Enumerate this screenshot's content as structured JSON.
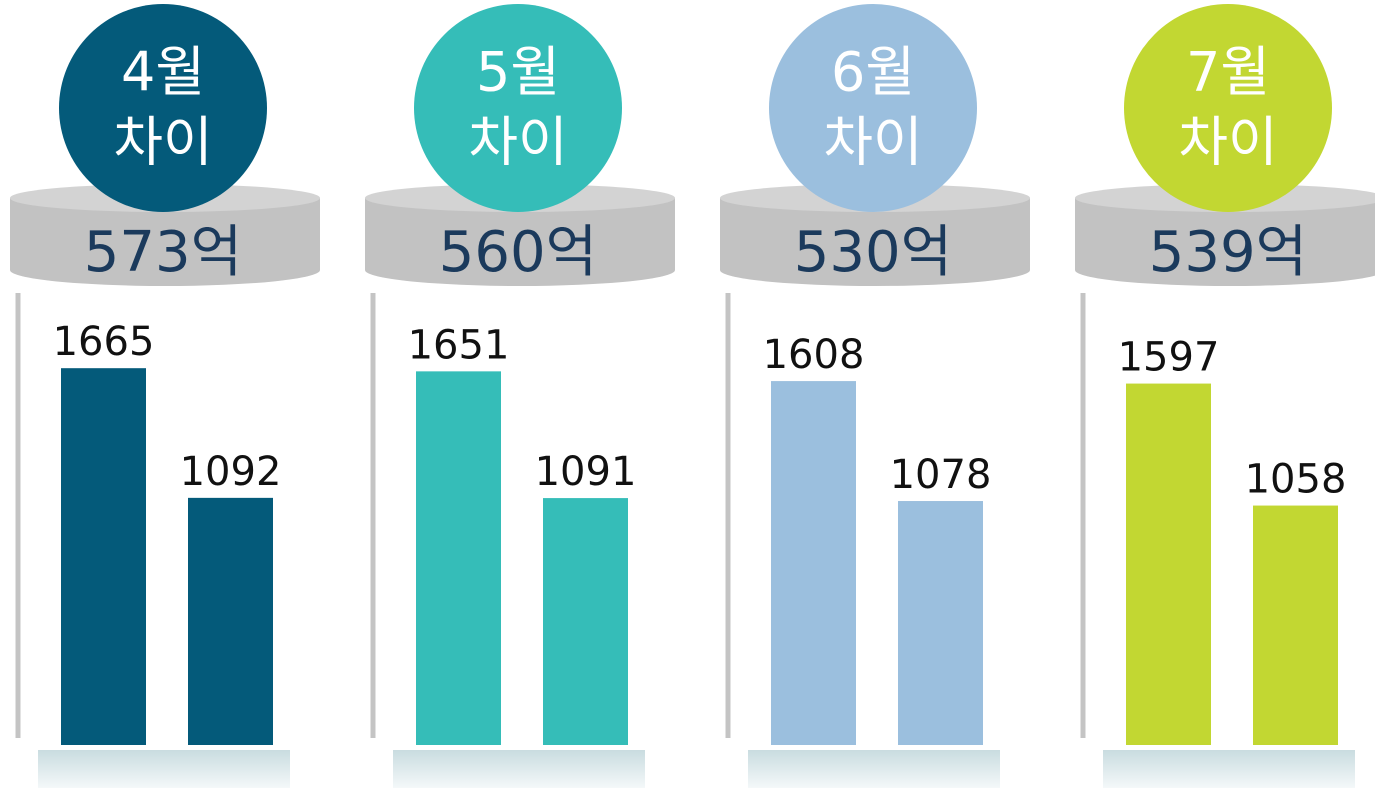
{
  "chart_data": [
    {
      "type": "bar",
      "title": "4월",
      "subtitle": "차이",
      "annotation": "573억",
      "categories": [
        null,
        null
      ],
      "values": [
        1665,
        1092
      ],
      "color": "#045a7a",
      "ylim": [
        0,
        1900
      ]
    },
    {
      "type": "bar",
      "title": "5월",
      "subtitle": "차이",
      "annotation": "560억",
      "categories": [
        null,
        null
      ],
      "values": [
        1651,
        1091
      ],
      "color": "#35bdb8",
      "ylim": [
        0,
        1900
      ]
    },
    {
      "type": "bar",
      "title": "6월",
      "subtitle": "차이",
      "annotation": "530억",
      "categories": [
        null,
        null
      ],
      "values": [
        1608,
        1078
      ],
      "color": "#9bbfde",
      "ylim": [
        0,
        1900
      ]
    },
    {
      "type": "bar",
      "title": "7월",
      "subtitle": "차이",
      "annotation": "539억",
      "categories": [
        null,
        null
      ],
      "values": [
        1597,
        1058
      ],
      "color": "#c2d732",
      "ylim": [
        0,
        1900
      ]
    }
  ]
}
